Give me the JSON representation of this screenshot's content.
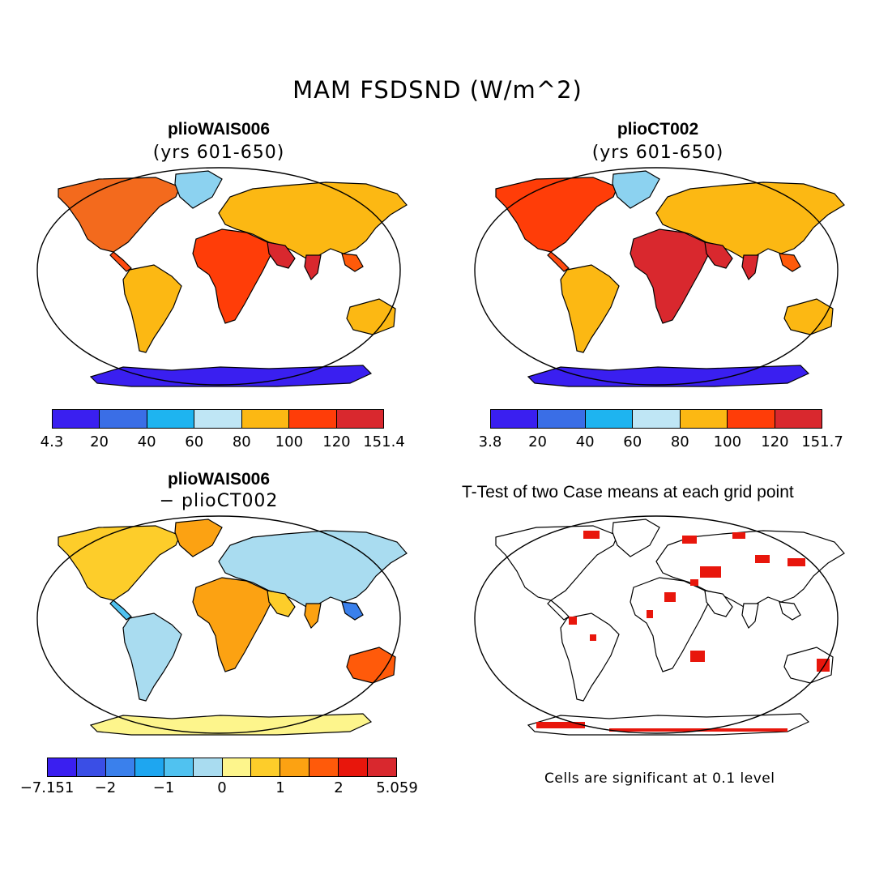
{
  "title": "MAM FSDSND (W/m^2)",
  "panels": [
    {
      "id": "p1",
      "title": "plioWAIS006",
      "subtitle": "(yrs 601-650)",
      "colorbar": {
        "colors": [
          "#3a1ff0",
          "#3a6ee6",
          "#1eb4f0",
          "#bfe6f5",
          "#fcb813",
          "#ff3d08",
          "#d9282e"
        ],
        "ticks": [
          "4.3",
          "20",
          "40",
          "60",
          "80",
          "100",
          "120",
          "151.4"
        ]
      }
    },
    {
      "id": "p2",
      "title": "plioCT002",
      "subtitle": "(yrs 601-650)",
      "colorbar": {
        "colors": [
          "#3a1ff0",
          "#3a6ee6",
          "#1eb4f0",
          "#bfe6f5",
          "#fcb813",
          "#ff3d08",
          "#d9282e"
        ],
        "ticks": [
          "3.8",
          "20",
          "40",
          "60",
          "80",
          "100",
          "120",
          "151.7"
        ]
      }
    },
    {
      "id": "p3",
      "title": "plioWAIS006",
      "subtitle": "− plioCT002",
      "colorbar": {
        "colors": [
          "#3a1ff0",
          "#3a4ee6",
          "#3a80ec",
          "#1ea6f0",
          "#50c2f0",
          "#a9dcf0",
          "#fdf58c",
          "#fdcd2a",
          "#fca212",
          "#ff5a0a",
          "#e8160c",
          "#d9282e"
        ],
        "ticks": [
          "−7.151",
          "−2",
          "−1",
          "0",
          "1",
          "2",
          "5.059"
        ]
      }
    },
    {
      "id": "p4",
      "title": "T-Test of two Case means at each grid point",
      "note": "Cells are significant at 0.1 level"
    }
  ]
}
